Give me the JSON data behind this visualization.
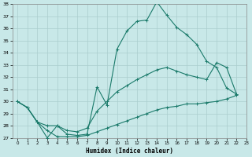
{
  "xlabel": "Humidex (Indice chaleur)",
  "bg_color": "#c8e8e8",
  "line_color": "#1a7a6a",
  "grid_color": "#aacece",
  "ylim": [
    27,
    38
  ],
  "xlim": [
    -0.5,
    23
  ],
  "yticks": [
    27,
    28,
    29,
    30,
    31,
    32,
    33,
    34,
    35,
    36,
    37,
    38
  ],
  "xticks": [
    0,
    1,
    2,
    3,
    4,
    5,
    6,
    7,
    8,
    9,
    10,
    11,
    12,
    13,
    14,
    15,
    16,
    17,
    18,
    19,
    20,
    21,
    22,
    23
  ],
  "line1_x": [
    0,
    1,
    2,
    3,
    4,
    5,
    6,
    7,
    8,
    9,
    10,
    11,
    12,
    13,
    14,
    15,
    16,
    17,
    18,
    19,
    20,
    21,
    22
  ],
  "line1_y": [
    30.0,
    29.5,
    28.3,
    27.0,
    28.0,
    27.3,
    27.2,
    27.3,
    31.2,
    29.7,
    34.3,
    35.8,
    36.6,
    36.7,
    38.2,
    37.1,
    36.1,
    35.5,
    34.7,
    33.3,
    32.8,
    31.1,
    30.6
  ],
  "line2_x": [
    0,
    1,
    2,
    3,
    4,
    5,
    6,
    7,
    8,
    9,
    10,
    11,
    12,
    13,
    14,
    15,
    16,
    17,
    18,
    19,
    20,
    21,
    22
  ],
  "line2_y": [
    30.0,
    29.5,
    28.3,
    28.0,
    28.0,
    27.6,
    27.5,
    27.8,
    29.2,
    30.0,
    30.8,
    31.3,
    31.8,
    32.2,
    32.6,
    32.8,
    32.5,
    32.2,
    32.0,
    31.8,
    33.2,
    32.8,
    30.6
  ],
  "line3_x": [
    0,
    1,
    2,
    3,
    4,
    5,
    6,
    7,
    8,
    9,
    10,
    11,
    12,
    13,
    14,
    15,
    16,
    17,
    18,
    19,
    20,
    21,
    22
  ],
  "line3_y": [
    30.0,
    29.5,
    28.3,
    27.6,
    27.1,
    27.1,
    27.1,
    27.2,
    27.5,
    27.8,
    28.1,
    28.4,
    28.7,
    29.0,
    29.3,
    29.5,
    29.6,
    29.8,
    29.8,
    29.9,
    30.0,
    30.2,
    30.5
  ]
}
